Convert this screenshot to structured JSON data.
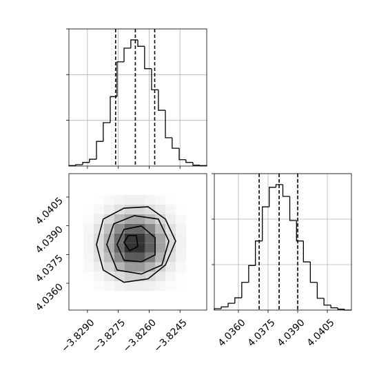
{
  "chart_data": [
    {
      "type": "histogram",
      "bins": [
        -3.8299,
        -3.82957,
        -3.82923,
        -3.8289,
        -3.82856,
        -3.82823,
        -3.82789,
        -3.82756,
        -3.82722,
        -3.82689,
        -3.82655,
        -3.82622,
        -3.82588,
        -3.82555,
        -3.82521,
        -3.82488,
        -3.82454,
        -3.82421,
        -3.82387,
        -3.82354,
        -3.8232
      ],
      "values": [
        1,
        3,
        8,
        15,
        54,
        95,
        152,
        228,
        258,
        276,
        262,
        213,
        167,
        122,
        62,
        39,
        14,
        8,
        2,
        1
      ],
      "quantiles": [
        -3.82763,
        -3.82667,
        -3.82573
      ],
      "xlim": [
        -3.8299,
        -3.8232
      ],
      "xticks": [
        -3.829,
        -3.8275,
        -3.826,
        -3.8245
      ],
      "ylim": [
        0,
        300
      ],
      "yticks": [
        100,
        200,
        300
      ],
      "grid": true,
      "color": "#000000"
    },
    {
      "type": "hist2d",
      "xlim": [
        -3.8299,
        -3.8232
      ],
      "xticks": [
        {
          "value": -3.829,
          "label": "−3.8290"
        },
        {
          "value": -3.8275,
          "label": "−3.8275"
        },
        {
          "value": -3.826,
          "label": "−3.8260"
        },
        {
          "value": -3.8245,
          "label": "−3.8245"
        }
      ],
      "ylim": [
        4.0346,
        4.04172
      ],
      "yticks": [
        {
          "value": 4.036,
          "label": "4.0360"
        },
        {
          "value": 4.0375,
          "label": "4.0375"
        },
        {
          "value": 4.039,
          "label": "4.0390"
        },
        {
          "value": 4.0405,
          "label": "4.0405"
        }
      ],
      "x_bins": [
        -3.8292,
        -3.8287,
        -3.8282,
        -3.8277,
        -3.8272,
        -3.8267,
        -3.8262,
        -3.8257,
        -3.8252,
        -3.8247,
        -3.8242
      ],
      "y_bins": [
        4.0356,
        4.0361,
        4.0366,
        4.0371,
        4.0376,
        4.0381,
        4.0386,
        4.0391,
        4.0396,
        4.0401,
        4.0406
      ],
      "density": [
        [
          0.0,
          0.02,
          0.03,
          0.06,
          0.08,
          0.08,
          0.07,
          0.04,
          0.02,
          0.01
        ],
        [
          0.01,
          0.04,
          0.09,
          0.16,
          0.22,
          0.22,
          0.17,
          0.1,
          0.04,
          0.01
        ],
        [
          0.03,
          0.08,
          0.19,
          0.34,
          0.46,
          0.47,
          0.36,
          0.21,
          0.09,
          0.03
        ],
        [
          0.04,
          0.14,
          0.31,
          0.55,
          0.75,
          0.76,
          0.59,
          0.34,
          0.15,
          0.05
        ],
        [
          0.05,
          0.17,
          0.39,
          0.7,
          0.94,
          0.95,
          0.74,
          0.43,
          0.19,
          0.06
        ],
        [
          0.05,
          0.17,
          0.38,
          0.68,
          0.92,
          0.93,
          0.72,
          0.42,
          0.18,
          0.06
        ],
        [
          0.04,
          0.13,
          0.29,
          0.52,
          0.7,
          0.71,
          0.55,
          0.32,
          0.14,
          0.05
        ],
        [
          0.02,
          0.07,
          0.17,
          0.31,
          0.41,
          0.42,
          0.32,
          0.19,
          0.08,
          0.03
        ],
        [
          0.01,
          0.03,
          0.08,
          0.14,
          0.19,
          0.19,
          0.15,
          0.09,
          0.04,
          0.01
        ],
        [
          0.0,
          0.01,
          0.03,
          0.05,
          0.07,
          0.07,
          0.05,
          0.03,
          0.01,
          0.0
        ]
      ],
      "contours": [
        {
          "x": [
            -3.82856,
            -3.82823,
            -3.82722,
            -3.82605,
            -3.82521,
            -3.82471,
            -3.82521,
            -3.82605,
            -3.82722,
            -3.82823
          ],
          "y": [
            4.03802,
            4.03935,
            4.03992,
            4.03999,
            4.03935,
            4.0382,
            4.03695,
            4.03623,
            4.03605,
            4.03669
          ]
        },
        {
          "x": [
            -3.82806,
            -3.82772,
            -3.82672,
            -3.82555,
            -3.82504,
            -3.82538,
            -3.82638,
            -3.82756
          ],
          "y": [
            4.03802,
            4.0391,
            4.03953,
            4.03935,
            4.0382,
            4.03695,
            4.03648,
            4.03669
          ]
        },
        {
          "x": [
            -3.82756,
            -3.82722,
            -3.82638,
            -3.82571,
            -3.82571,
            -3.82638,
            -3.82722
          ],
          "y": [
            4.03802,
            4.03881,
            4.03899,
            4.03838,
            4.03748,
            4.03712,
            4.0372
          ]
        },
        {
          "x": [
            -3.82722,
            -3.82702,
            -3.82662,
            -3.82655,
            -3.82695
          ],
          "y": [
            4.03813,
            4.03849,
            4.03849,
            4.03791,
            4.0377
          ]
        }
      ],
      "grid": false,
      "color": "#000000"
    },
    {
      "type": "histogram",
      "bins": [
        4.03478,
        4.03513,
        4.03548,
        4.03582,
        4.03617,
        4.03652,
        4.03686,
        4.03721,
        4.03756,
        4.0379,
        4.03825,
        4.0386,
        4.03894,
        4.03929,
        4.03964,
        4.03999,
        4.04033,
        4.04068,
        4.04103,
        4.04137,
        4.04172
      ],
      "values": [
        3,
        7,
        15,
        27,
        61,
        98,
        152,
        227,
        270,
        276,
        250,
        197,
        152,
        106,
        61,
        26,
        11,
        5,
        2,
        0
      ],
      "quantiles": [
        4.03705,
        4.03806,
        4.039
      ],
      "xlim": [
        4.03478,
        4.04172
      ],
      "xticks": [
        {
          "value": 4.036,
          "label": "4.0360"
        },
        {
          "value": 4.0375,
          "label": "4.0375"
        },
        {
          "value": 4.039,
          "label": "4.0390"
        },
        {
          "value": 4.0405,
          "label": "4.0405"
        }
      ],
      "ylim": [
        0,
        300
      ],
      "yticks": [
        100,
        200,
        300
      ],
      "grid": true,
      "color": "#000000"
    }
  ]
}
